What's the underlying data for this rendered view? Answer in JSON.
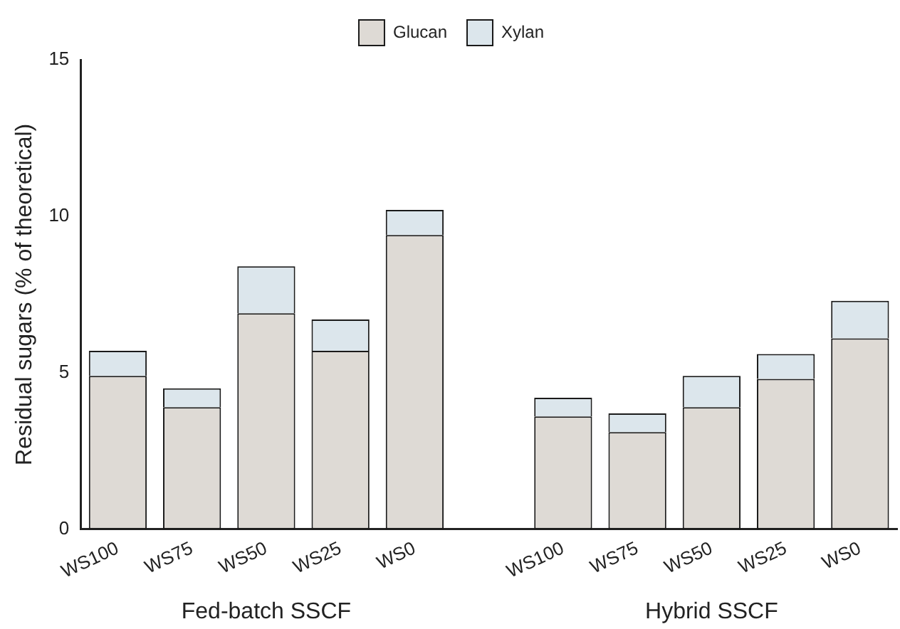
{
  "chart_data": {
    "type": "bar",
    "stacked": true,
    "ylabel": "Residual sugars (% of theoretical)",
    "categories": [
      "WS100",
      "WS75",
      "WS50",
      "WS25",
      "WS0",
      null,
      "WS100",
      "WS75",
      "WS50",
      "WS25",
      "WS0"
    ],
    "series": [
      {
        "name": "Glucan",
        "color": "#dedad5",
        "values": [
          4.9,
          3.9,
          6.9,
          5.7,
          9.4,
          null,
          3.6,
          3.1,
          3.9,
          4.8,
          6.1
        ]
      },
      {
        "name": "Xylan",
        "color": "#dce6ec",
        "values": [
          0.8,
          0.6,
          1.5,
          1.0,
          0.8,
          null,
          0.6,
          0.6,
          1.0,
          0.8,
          1.2
        ]
      }
    ],
    "ylim": [
      0,
      15
    ],
    "yticks": [
      0,
      5,
      10,
      15
    ],
    "grid": false,
    "legend": "top",
    "annotations": [
      "Fed-batch SSCF",
      "Hybrid SSCF"
    ]
  }
}
